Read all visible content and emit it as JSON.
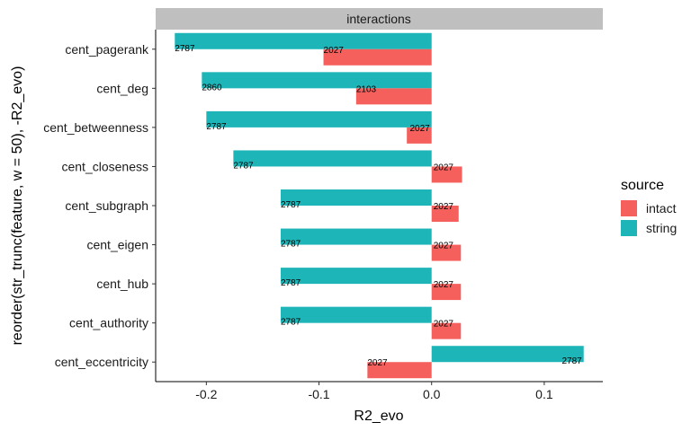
{
  "chart_data": {
    "type": "bar",
    "orientation": "horizontal",
    "facet": "interactions",
    "xlabel": "R2_evo",
    "ylabel": "reorder(str_trunc(feature, w = 50), -R2_evo)",
    "xlim": [
      -0.245,
      0.152
    ],
    "xticks": [
      -0.2,
      -0.1,
      0.0,
      0.1
    ],
    "xtick_labels": [
      "-0.2",
      "-0.1",
      "0.0",
      "0.1"
    ],
    "categories": [
      "cent_pagerank",
      "cent_deg",
      "cent_betweenness",
      "cent_closeness",
      "cent_subgraph",
      "cent_eigen",
      "cent_hub",
      "cent_authority",
      "cent_eccentricity"
    ],
    "legend": {
      "title": "source",
      "position": "right",
      "entries": [
        {
          "name": "intact",
          "color": "#F8766D"
        },
        {
          "name": "string",
          "color": "#00BFC4"
        }
      ]
    },
    "series": [
      {
        "name": "string",
        "color": "#1DB5B8",
        "values": [
          -0.228,
          -0.204,
          -0.2,
          -0.176,
          -0.134,
          -0.134,
          -0.134,
          -0.134,
          0.135
        ],
        "labels": [
          "2787",
          "2860",
          "2787",
          "2787",
          "2787",
          "2787",
          "2787",
          "2787",
          "2787"
        ]
      },
      {
        "name": "intact",
        "color": "#F5605D",
        "values": [
          -0.096,
          -0.067,
          -0.022,
          0.027,
          0.024,
          0.026,
          0.026,
          0.026,
          -0.057
        ],
        "labels": [
          "2027",
          "2103",
          "2027",
          "2027",
          "2027",
          "2027",
          "2027",
          "2027",
          "2027"
        ]
      }
    ]
  }
}
